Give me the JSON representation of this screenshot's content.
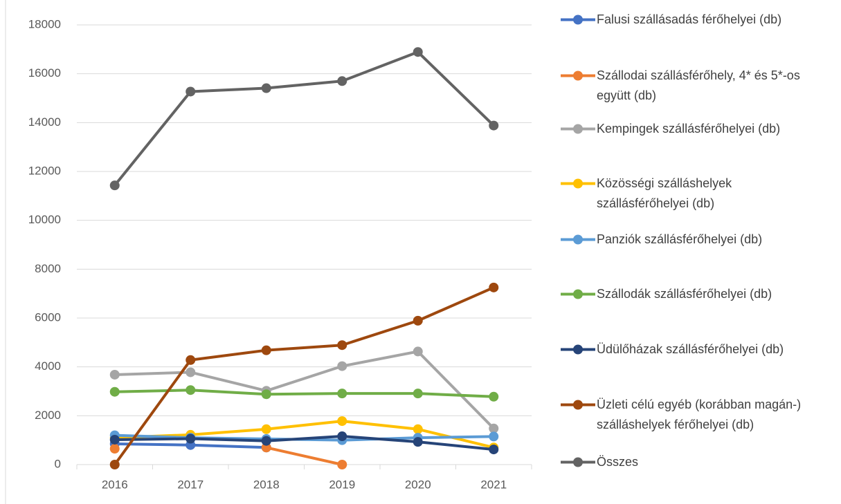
{
  "chart_data": {
    "type": "line",
    "categories": [
      "2016",
      "2017",
      "2018",
      "2019",
      "2020",
      "2021"
    ],
    "series": [
      {
        "name": "Falusi szállásadás férőhelyei (db)",
        "color": "#4472c4",
        "values": [
          850,
          800,
          700,
          null,
          null,
          null
        ]
      },
      {
        "name": "Szállodai szállásférőhely, 4* és 5*-os együtt (db)",
        "color": "#ed7d31",
        "values": [
          650,
          null,
          700,
          0,
          null,
          null
        ]
      },
      {
        "name": "Kempingek szállásférőhelyei (db)",
        "color": "#a5a5a5",
        "values": [
          3680,
          3780,
          3020,
          4030,
          4630,
          1480
        ]
      },
      {
        "name": "Közösségi szálláshelyek szállásférőhelyei (db)",
        "color": "#ffc000",
        "values": [
          1100,
          1220,
          1450,
          1780,
          1450,
          700
        ]
      },
      {
        "name": "Panziók szállásférőhelyei (db)",
        "color": "#5b9bd5",
        "values": [
          1200,
          1100,
          1050,
          1000,
          1100,
          1150
        ]
      },
      {
        "name": "Szállodák szállásférőhelyei (db)",
        "color": "#70ad47",
        "values": [
          2980,
          3050,
          2880,
          2910,
          2910,
          2780
        ]
      },
      {
        "name": "Üdülőházak szállásférőhelyei (db)",
        "color": "#264478",
        "values": [
          1020,
          1060,
          970,
          1160,
          930,
          620
        ]
      },
      {
        "name": "Üzleti célú egyéb (korábban magán-) szálláshelyek férőhelyei (db)",
        "color": "#9e480e",
        "values": [
          0,
          4280,
          4680,
          4890,
          5890,
          7250
        ]
      },
      {
        "name": "Összes",
        "color": "#636363",
        "values": [
          11430,
          15270,
          15410,
          15700,
          16890,
          13880
        ]
      }
    ],
    "ylim": [
      0,
      18000
    ],
    "yticks": [
      0,
      2000,
      4000,
      6000,
      8000,
      10000,
      12000,
      14000,
      16000,
      18000
    ],
    "grid": true
  }
}
